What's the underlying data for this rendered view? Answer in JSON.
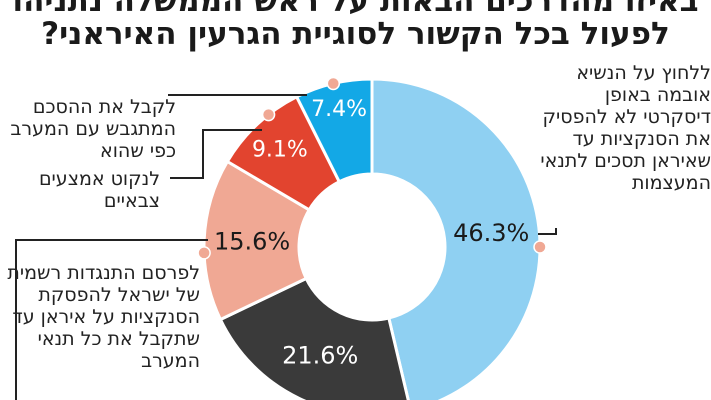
{
  "title": {
    "line1": "באיזו מהדרכים הבאות על ראש הממשלה נתניהו",
    "line2": "לפעול בכל הקשור לסוגיית הגרעין האיראני?"
  },
  "chart_data": {
    "type": "pie",
    "donut": true,
    "start": "12 o'clock",
    "direction": "clockwise",
    "slices": [
      {
        "label": "ללחוץ על הנשיא אובמה באופן דיסקרטי לא להפסיק את הסנקציות עד שאיראן תסכים לתנאי המעצמות",
        "value": 46.3,
        "value_label": "46.3%",
        "color": "#8fd0f2"
      },
      {
        "label": "לפרסם התנגדות רשמית של ישראל להפסקת הסנקציות על איראן עד שתקבל את כל תנאי המערב",
        "value": 21.6,
        "value_label": "21.6%",
        "color": "#3a3a3a"
      },
      {
        "label": "לנקוט אמצעים צבאיים",
        "value": 15.6,
        "value_label": "15.6%",
        "color": "#f0a894"
      },
      {
        "label": "לקבל את ההסכם המתגבש עם המערב כפי שהוא",
        "value": 9.1,
        "value_label": "9.1%",
        "color": "#e2442f"
      },
      {
        "label": "",
        "value": 7.4,
        "value_label": "7.4%",
        "color": "#13a8e6"
      }
    ]
  },
  "colors": {
    "accent_dot": "#f0a894",
    "leader_line": "#222222"
  }
}
